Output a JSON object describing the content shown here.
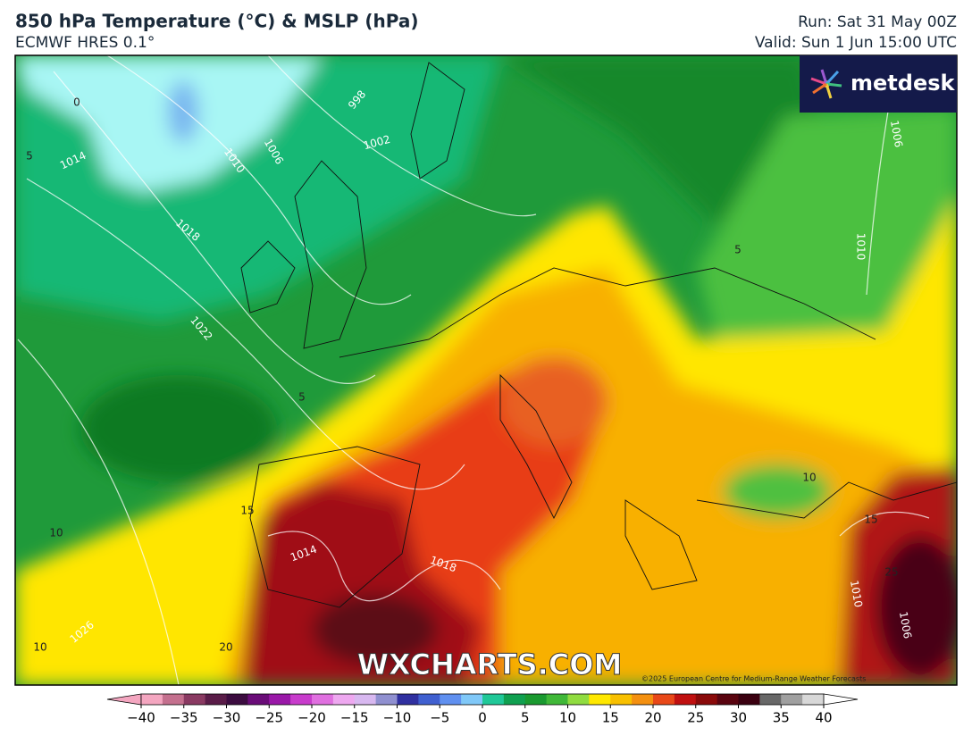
{
  "header": {
    "title": "850 hPa Temperature (°C) & MSLP (hPa)",
    "subtitle": "ECMWF HRES 0.1°",
    "run": "Run: Sat 31 May 00Z",
    "valid": "Valid: Sun 1 Jun 15:00 UTC"
  },
  "logo": "metdesk",
  "watermark": "WXCHARTS.COM",
  "copyright": "©2025 European Centre for Medium-Range Weather Forecasts",
  "contour_labels": [
    0,
    5,
    1014,
    1010,
    1006,
    998,
    1002,
    1018,
    1022,
    5,
    5,
    1010,
    1006,
    10,
    15,
    10,
    1014,
    1018,
    15,
    25,
    1010,
    1006,
    20,
    1026,
    10
  ],
  "colorbar": {
    "lim": [
      -40,
      40
    ],
    "colors": [
      "#f4a6c0",
      "#c4708e",
      "#8a3a62",
      "#5a1c48",
      "#3c0c40",
      "#6a0c78",
      "#9a18a8",
      "#c83ccc",
      "#e070e0",
      "#eea8f0",
      "#d8b8f0",
      "#9090d0",
      "#3030a0",
      "#4060d0",
      "#6090f0",
      "#80c8f8",
      "#20c898",
      "#10a050",
      "#1a9a30",
      "#40b838",
      "#90dc40",
      "#ffe800",
      "#f8c000",
      "#f49010",
      "#e84818",
      "#c01010",
      "#8a0a0a",
      "#5a0410",
      "#3a0010",
      "#686868",
      "#a0a0a0",
      "#d8d8d8"
    ],
    "ticks": [
      {
        "value": -40,
        "label": "−40"
      },
      {
        "value": -35,
        "label": "−35"
      },
      {
        "value": -30,
        "label": "−30"
      },
      {
        "value": -25,
        "label": "−25"
      },
      {
        "value": -20,
        "label": "−20"
      },
      {
        "value": -15,
        "label": "−15"
      },
      {
        "value": -10,
        "label": "−10"
      },
      {
        "value": -5,
        "label": "−5"
      },
      0,
      5,
      10,
      15,
      20,
      25,
      30,
      35,
      40
    ]
  }
}
